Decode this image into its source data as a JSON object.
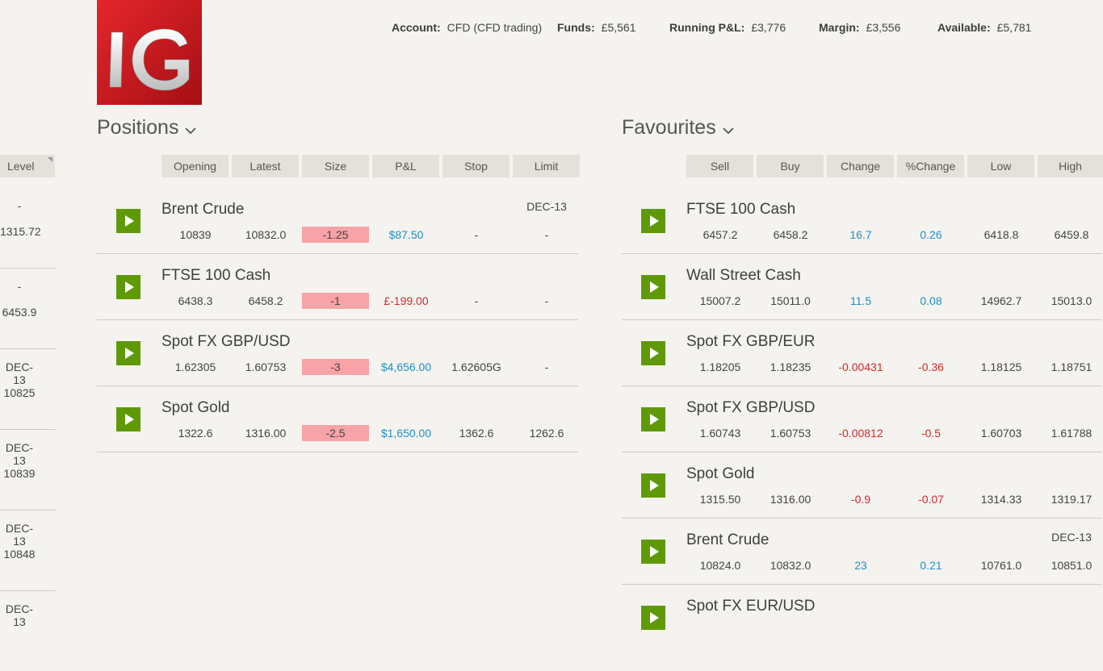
{
  "left_column": {
    "header": "Level",
    "cells": [
      {
        "top": "-",
        "bottom": "1315.72"
      },
      {
        "top": "-",
        "bottom": "6453.9"
      },
      {
        "top": "DEC-13",
        "bottom": "10825"
      },
      {
        "top": "DEC-13",
        "bottom": "10839"
      },
      {
        "top": "DEC-13",
        "bottom": "10848"
      },
      {
        "top": "DEC-13",
        "bottom": ""
      }
    ]
  },
  "logo": {
    "text": "IG",
    "color": "#d4161e"
  },
  "account_bar": {
    "account_label": "Account:",
    "account_value": "CFD  (CFD trading)",
    "funds_label": "Funds:",
    "funds_value": "£5,561",
    "pnl_label": "Running P&L:",
    "pnl_value": "£3,776",
    "margin_label": "Margin:",
    "margin_value": "£3,556",
    "available_label": "Available:",
    "available_value": "£5,781"
  },
  "positions": {
    "title": "Positions",
    "columns": [
      "Opening",
      "Latest",
      "Size",
      "P&L",
      "Stop",
      "Limit"
    ],
    "rows": [
      {
        "name": "Brent Crude",
        "expiry": "DEC-13",
        "opening": "10839",
        "latest": "10832.0",
        "size": "-1.25",
        "pnl": "$87.50",
        "pnl_sign": "pos",
        "stop": "-",
        "limit": "-"
      },
      {
        "name": "FTSE 100 Cash",
        "expiry": "",
        "opening": "6438.3",
        "latest": "6458.2",
        "size": "-1",
        "pnl": "£-199.00",
        "pnl_sign": "neg",
        "stop": "-",
        "limit": "-"
      },
      {
        "name": "Spot FX GBP/USD",
        "expiry": "",
        "opening": "1.62305",
        "latest": "1.60753",
        "size": "-3",
        "pnl": "$4,656.00",
        "pnl_sign": "pos",
        "stop": "1.62605G",
        "limit": "-"
      },
      {
        "name": "Spot Gold",
        "expiry": "",
        "opening": "1322.6",
        "latest": "1316.00",
        "size": "-2.5",
        "pnl": "$1,650.00",
        "pnl_sign": "pos",
        "stop": "1362.6",
        "limit": "1262.6"
      }
    ]
  },
  "favourites": {
    "title": "Favourites",
    "columns": [
      "Sell",
      "Buy",
      "Change",
      "%Change",
      "Low",
      "High"
    ],
    "rows": [
      {
        "name": "FTSE 100 Cash",
        "expiry": "",
        "sell": "6457.2",
        "buy": "6458.2",
        "change": "16.7",
        "pct": "0.26",
        "sign": "pos",
        "low": "6418.8",
        "high": "6459.8"
      },
      {
        "name": "Wall Street Cash",
        "expiry": "",
        "sell": "15007.2",
        "buy": "15011.0",
        "change": "11.5",
        "pct": "0.08",
        "sign": "pos",
        "low": "14962.7",
        "high": "15013.0"
      },
      {
        "name": "Spot FX GBP/EUR",
        "expiry": "",
        "sell": "1.18205",
        "buy": "1.18235",
        "change": "-0.00431",
        "pct": "-0.36",
        "sign": "neg",
        "low": "1.18125",
        "high": "1.18751"
      },
      {
        "name": "Spot FX GBP/USD",
        "expiry": "",
        "sell": "1.60743",
        "buy": "1.60753",
        "change": "-0.00812",
        "pct": "-0.5",
        "sign": "neg",
        "low": "1.60703",
        "high": "1.61788"
      },
      {
        "name": "Spot Gold",
        "expiry": "",
        "sell": "1315.50",
        "buy": "1316.00",
        "change": "-0.9",
        "pct": "-0.07",
        "sign": "neg",
        "low": "1314.33",
        "high": "1319.17"
      },
      {
        "name": "Brent Crude",
        "expiry": "DEC-13",
        "sell": "10824.0",
        "buy": "10832.0",
        "change": "23",
        "pct": "0.21",
        "sign": "pos",
        "low": "10761.0",
        "high": "10851.0"
      },
      {
        "name": "Spot FX EUR/USD",
        "expiry": "",
        "sell": "",
        "buy": "",
        "change": "",
        "pct": "",
        "sign": "pos",
        "low": "",
        "high": ""
      }
    ]
  },
  "colors": {
    "accent_green": "#5f9a06",
    "positive": "#1f8fc6",
    "negative": "#d6272d",
    "size_bg": "#f7a3a8"
  }
}
